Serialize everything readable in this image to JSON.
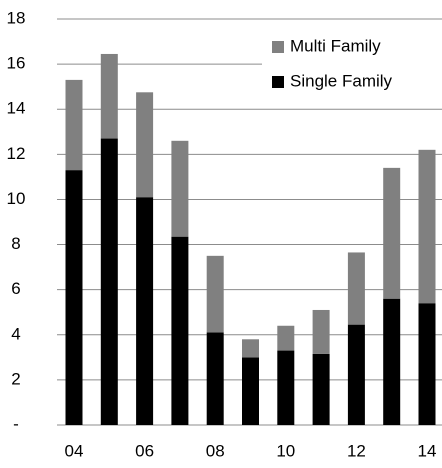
{
  "chart_data": {
    "type": "stacked-bar",
    "categories": [
      "04",
      null,
      "06",
      null,
      "08",
      null,
      "10",
      null,
      "12",
      null,
      "14"
    ],
    "series": [
      {
        "name": "Single Family",
        "color": "#000000",
        "values": [
          11.3,
          12.7,
          10.1,
          8.35,
          4.1,
          3.0,
          3.3,
          3.15,
          4.45,
          5.6,
          5.4
        ]
      },
      {
        "name": "Multi Family",
        "color": "#808080",
        "values": [
          4.0,
          3.75,
          4.65,
          4.25,
          3.4,
          0.8,
          1.1,
          1.95,
          3.2,
          5.8,
          6.8
        ]
      }
    ],
    "ylim": [
      0,
      18
    ],
    "yticks": [
      {
        "value": 0,
        "label": "-"
      },
      2,
      4,
      6,
      8,
      10,
      12,
      14,
      16,
      18
    ],
    "grid": true,
    "legend": "upper right"
  }
}
